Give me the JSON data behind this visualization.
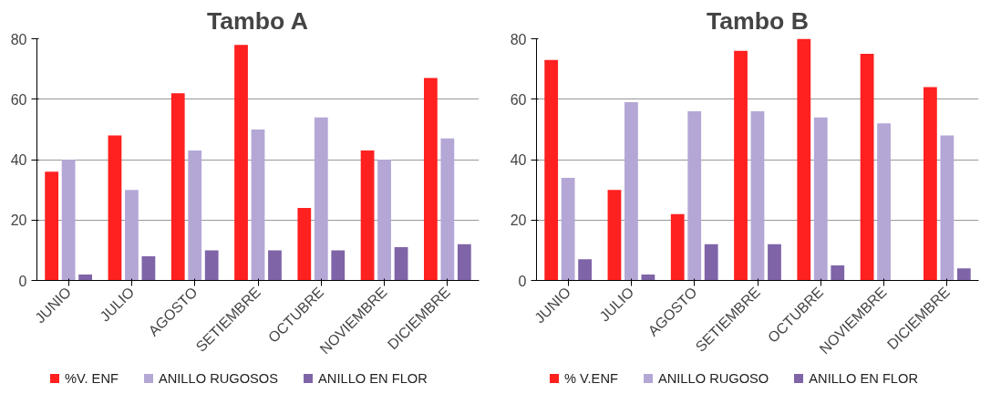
{
  "chart_data": [
    {
      "type": "bar",
      "title": "Tambo A",
      "categories": [
        "JUNIO",
        "JULIO",
        "AGOSTO",
        "SETIEMBRE",
        "OCTUBRE",
        "NOVIEMBRE",
        "DICIEMBRE"
      ],
      "series": [
        {
          "name": "%V. ENF",
          "color": "#ff2020",
          "values": [
            36,
            48,
            62,
            78,
            24,
            43,
            67
          ]
        },
        {
          "name": "ANILLO RUGOSOS",
          "color": "#b4a7d6",
          "values": [
            40,
            30,
            43,
            50,
            54,
            40,
            47
          ]
        },
        {
          "name": "ANILLO EN FLOR",
          "color": "#7f64a8",
          "values": [
            2,
            8,
            10,
            10,
            10,
            11,
            12
          ]
        }
      ],
      "ylim": [
        0,
        80
      ],
      "yticks": [
        0,
        20,
        40,
        60,
        80
      ],
      "grid": "y",
      "legend": "bottom"
    },
    {
      "type": "bar",
      "title": "Tambo B",
      "categories": [
        "JUNIO",
        "JULIO",
        "AGOSTO",
        "SETIEMBRE",
        "OCTUBRE",
        "NOVIEMBRE",
        "DICIEMBRE"
      ],
      "series": [
        {
          "name": "% V.ENF",
          "color": "#ff2020",
          "values": [
            73,
            30,
            22,
            76,
            80,
            75,
            64
          ]
        },
        {
          "name": "ANILLO RUGOSO",
          "color": "#b4a7d6",
          "values": [
            34,
            59,
            56,
            56,
            54,
            52,
            48
          ]
        },
        {
          "name": "ANILLO EN FLOR",
          "color": "#7f64a8",
          "values": [
            7,
            2,
            12,
            12,
            5,
            0,
            4
          ]
        }
      ],
      "ylim": [
        0,
        80
      ],
      "yticks": [
        0,
        20,
        40,
        60,
        80
      ],
      "grid": "y",
      "legend": "bottom"
    }
  ]
}
